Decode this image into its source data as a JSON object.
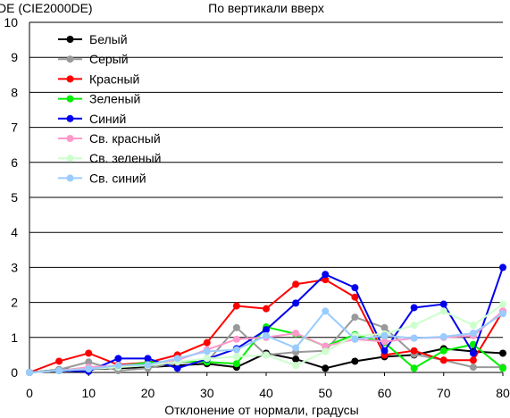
{
  "chart_data": {
    "type": "line",
    "title": "По вертикали вверх",
    "ylabel": "DE (CIE2000DE)",
    "xlabel": "Отклонение от нормали, градусы",
    "x": [
      0,
      5,
      10,
      15,
      20,
      25,
      30,
      35,
      40,
      45,
      50,
      55,
      60,
      65,
      70,
      75,
      80
    ],
    "xticks": [
      0,
      10,
      20,
      30,
      40,
      50,
      60,
      70,
      80
    ],
    "yticks": [
      0,
      1,
      2,
      3,
      4,
      5,
      6,
      7,
      8,
      9,
      10
    ],
    "xlim": [
      0,
      80
    ],
    "ylim": [
      0,
      10
    ],
    "grid": "horizontal",
    "legend_position": "top-left",
    "series": [
      {
        "name": "Белый",
        "color": "#000000",
        "values": [
          0,
          0.08,
          0.1,
          0.12,
          0.15,
          0.2,
          0.25,
          0.15,
          0.55,
          0.38,
          0.12,
          0.32,
          0.45,
          0.5,
          0.68,
          0.6,
          0.55
        ]
      },
      {
        "name": "Серый",
        "color": "#999999",
        "values": [
          0,
          0.08,
          0.3,
          0.05,
          0.12,
          0.3,
          0.3,
          1.28,
          0.5,
          0.58,
          0.62,
          1.58,
          1.28,
          0.52,
          0.35,
          0.15,
          0.15
        ]
      },
      {
        "name": "Красный",
        "color": "#ff0000",
        "values": [
          0,
          0.32,
          0.55,
          0.22,
          0.28,
          0.5,
          0.85,
          1.9,
          1.82,
          2.52,
          2.65,
          2.15,
          0.5,
          0.62,
          0.35,
          0.35,
          1.75
        ]
      },
      {
        "name": "Зеленый",
        "color": "#00ee00",
        "values": [
          0,
          0.05,
          0.12,
          0.18,
          0.28,
          0.32,
          0.3,
          0.25,
          1.3,
          1.1,
          0.75,
          1.08,
          0.85,
          0.12,
          0.62,
          0.8,
          0.12
        ]
      },
      {
        "name": "Синий",
        "color": "#0000ee",
        "values": [
          0,
          0.05,
          0.03,
          0.4,
          0.4,
          0.12,
          0.38,
          0.68,
          1.22,
          1.98,
          2.8,
          2.42,
          0.62,
          1.85,
          1.95,
          0.55,
          3.0
        ]
      },
      {
        "name": "Св. красный",
        "color": "#ff99cc",
        "values": [
          0,
          0.05,
          0.15,
          0.2,
          0.22,
          0.35,
          0.65,
          0.95,
          1.0,
          1.12,
          0.75,
          0.95,
          0.88,
          0.98,
          1.0,
          1.05,
          1.75
        ]
      },
      {
        "name": "Св. зеленый",
        "color": "#ccffcc",
        "values": [
          0,
          0.05,
          0.1,
          0.15,
          0.2,
          0.3,
          0.4,
          0.45,
          0.5,
          0.2,
          0.6,
          1.05,
          1.1,
          1.35,
          1.75,
          1.35,
          1.95
        ]
      },
      {
        "name": "Св. синий",
        "color": "#99ccff",
        "values": [
          0,
          0.05,
          0.1,
          0.2,
          0.22,
          0.4,
          0.6,
          0.65,
          1.05,
          0.7,
          1.75,
          0.95,
          1.05,
          0.98,
          1.02,
          1.12,
          1.68
        ]
      }
    ]
  }
}
